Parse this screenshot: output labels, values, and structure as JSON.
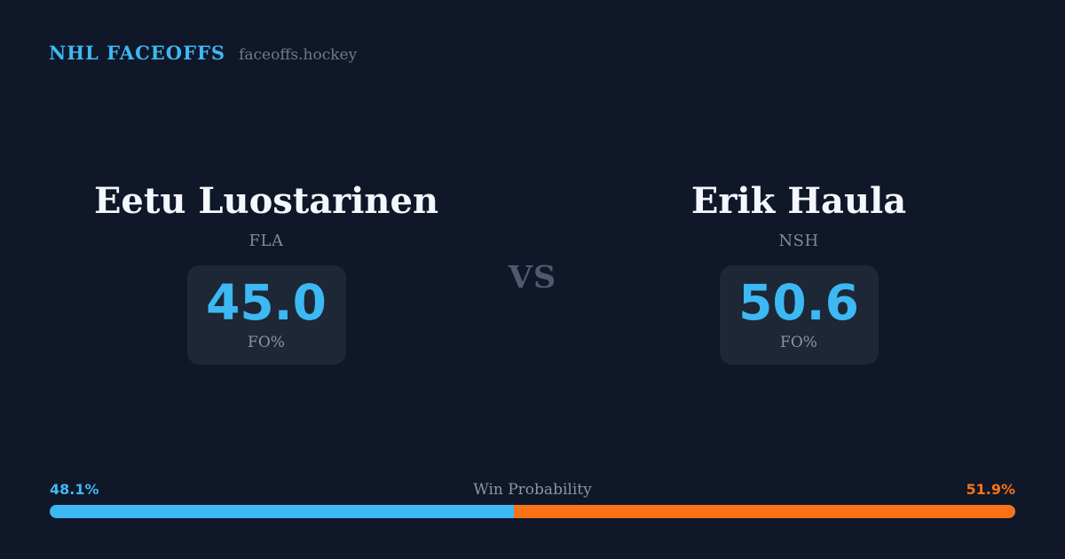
{
  "header": {
    "brand": "NHL FACEOFFS",
    "site": "faceoffs.hockey"
  },
  "matchup": {
    "vs_label": "VS",
    "players": [
      {
        "name": "Eetu Luostarinen",
        "team": "FLA",
        "stat_value": "45.0",
        "stat_label": "FO%"
      },
      {
        "name": "Erik Haula",
        "team": "NSH",
        "stat_value": "50.6",
        "stat_label": "FO%"
      }
    ]
  },
  "win_probability": {
    "title": "Win Probability",
    "left_label": "48.1%",
    "right_label": "51.9%",
    "left_value": 48.1,
    "right_value": 51.9
  },
  "colors": {
    "background": "#101728",
    "card": "#1d2735",
    "accent_blue": "#3cb9f3",
    "accent_orange": "#f97316"
  }
}
